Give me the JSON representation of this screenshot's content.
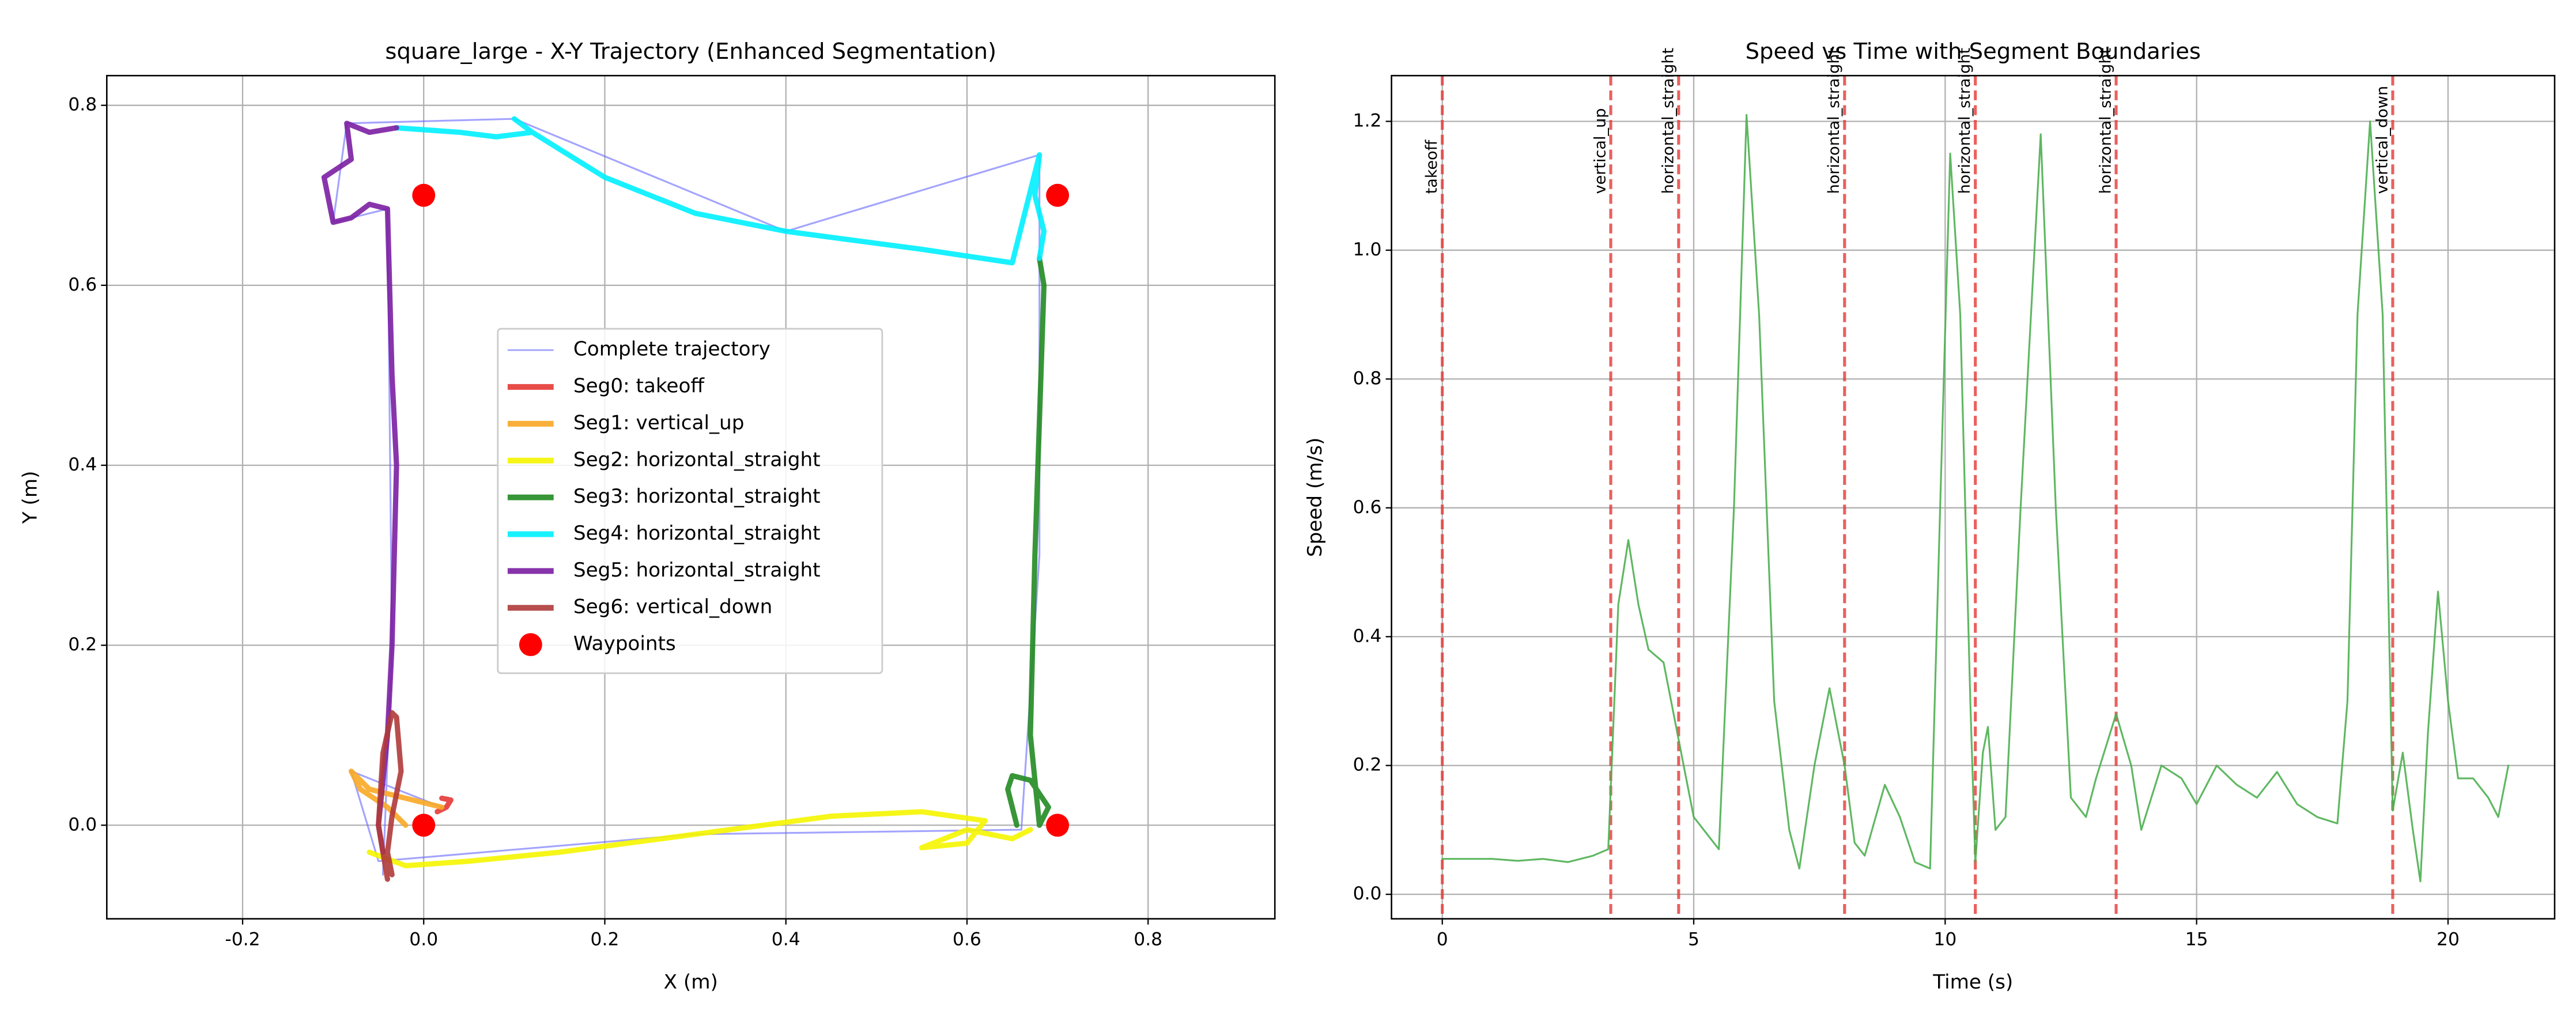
{
  "chart_data": [
    {
      "type": "line",
      "title": "square_large - X-Y Trajectory (Enhanced Segmentation)",
      "xlabel": "X (m)",
      "ylabel": "Y (m)",
      "xlim": [
        -0.35,
        0.94
      ],
      "ylim": [
        -0.104,
        0.833
      ],
      "xticks": [
        -0.2,
        {
          "value": 0,
          "label": "0.0"
        },
        0.2,
        0.4,
        0.6,
        0.8
      ],
      "yticks": [
        {
          "value": 0,
          "label": "0.0"
        },
        0.2,
        0.4,
        0.6,
        0.8
      ],
      "grid": true,
      "legend": "center",
      "series": [
        {
          "name": "Complete trajectory",
          "color": "#6666ff",
          "x": [
            0.02,
            -0.08,
            -0.05,
            0.3,
            0.66,
            0.68,
            0.68,
            0.4,
            0.1,
            -0.085,
            -0.1,
            -0.04,
            -0.035,
            -0.045
          ],
          "y": [
            0.02,
            0.06,
            -0.04,
            -0.01,
            -0.005,
            0.3,
            0.745,
            0.66,
            0.785,
            0.78,
            0.67,
            0.685,
            0.2,
            -0.055
          ]
        },
        {
          "name": "Seg0: takeoff",
          "color": "#e53935",
          "x": [
            0.015,
            0.025,
            0.03,
            0.02
          ],
          "y": [
            0.015,
            0.02,
            0.028,
            0.03
          ]
        },
        {
          "name": "Seg1: vertical_up",
          "color": "#f9a825",
          "x": [
            0.02,
            -0.02,
            -0.06,
            -0.08,
            -0.07,
            -0.04,
            -0.02
          ],
          "y": [
            0.02,
            0.03,
            0.04,
            0.06,
            0.04,
            0.02,
            0.0
          ]
        },
        {
          "name": "Seg2: horizontal_straight",
          "color": "#f5f500",
          "x": [
            -0.06,
            -0.02,
            0.05,
            0.15,
            0.3,
            0.45,
            0.55,
            0.62,
            0.6,
            0.55,
            0.6,
            0.65,
            0.67
          ],
          "y": [
            -0.03,
            -0.045,
            -0.04,
            -0.03,
            -0.01,
            0.01,
            0.015,
            0.005,
            -0.02,
            -0.025,
            -0.005,
            -0.015,
            -0.005
          ]
        },
        {
          "name": "Seg3: horizontal_straight",
          "color": "#228b22",
          "x": [
            0.655,
            0.645,
            0.65,
            0.67,
            0.69,
            0.68,
            0.67,
            0.675,
            0.68,
            0.685,
            0.68
          ],
          "y": [
            0.0,
            0.04,
            0.055,
            0.05,
            0.02,
            0.0,
            0.1,
            0.3,
            0.45,
            0.6,
            0.63
          ]
        },
        {
          "name": "Seg4: horizontal_straight",
          "color": "#00f0ff",
          "x": [
            0.68,
            0.685,
            0.675,
            0.68,
            0.65,
            0.55,
            0.4,
            0.3,
            0.2,
            0.12,
            0.1,
            0.12,
            0.08,
            0.04,
            -0.03
          ],
          "y": [
            0.63,
            0.66,
            0.7,
            0.745,
            0.625,
            0.64,
            0.66,
            0.68,
            0.72,
            0.77,
            0.785,
            0.77,
            0.765,
            0.77,
            0.775
          ]
        },
        {
          "name": "Seg5: horizontal_straight",
          "color": "#7b1fa2",
          "x": [
            -0.03,
            -0.06,
            -0.085,
            -0.08,
            -0.11,
            -0.1,
            -0.08,
            -0.06,
            -0.04,
            -0.035,
            -0.03,
            -0.035,
            -0.04,
            -0.05,
            -0.045
          ],
          "y": [
            0.775,
            0.77,
            0.78,
            0.74,
            0.72,
            0.67,
            0.675,
            0.69,
            0.685,
            0.5,
            0.4,
            0.2,
            0.1,
            0.0,
            -0.03
          ]
        },
        {
          "name": "Seg6: vertical_down",
          "color": "#b03a3a",
          "x": [
            -0.04,
            -0.045,
            -0.05,
            -0.045,
            -0.035,
            -0.03,
            -0.025,
            -0.035,
            -0.04,
            -0.035
          ],
          "y": [
            -0.06,
            -0.03,
            0.0,
            0.08,
            0.125,
            0.12,
            0.06,
            0.01,
            -0.03,
            -0.055
          ]
        }
      ],
      "waypoints": {
        "name": "Waypoints",
        "color": "#ff0000",
        "x": [
          0,
          0.7,
          0.7,
          0
        ],
        "y": [
          0,
          0,
          0.7,
          0.7
        ]
      }
    },
    {
      "type": "line",
      "title": "Speed vs Time with Segment Boundaries",
      "xlabel": "Time (s)",
      "ylabel": "Speed (m/s)",
      "xlim": [
        -1.01,
        22.12
      ],
      "ylim": [
        -0.038,
        1.271
      ],
      "xticks": [
        0,
        5,
        10,
        15,
        20
      ],
      "yticks": [
        {
          "value": 0,
          "label": "0.0"
        },
        0.2,
        0.4,
        0.6,
        0.8,
        {
          "value": 1,
          "label": "1.0"
        },
        1.2
      ],
      "grid": true,
      "series": [
        {
          "color": "#4caf50",
          "x": [
            0,
            0.5,
            1,
            1.5,
            2,
            2.5,
            3,
            3.3,
            3.5,
            3.7,
            3.9,
            4.1,
            4.4,
            4.6,
            4.8,
            5.0,
            5.3,
            5.5,
            5.8,
            6.05,
            6.3,
            6.6,
            6.9,
            7.1,
            7.4,
            7.7,
            8.0,
            8.2,
            8.4,
            8.8,
            9.1,
            9.4,
            9.7,
            9.9,
            10.1,
            10.3,
            10.5,
            10.6,
            10.75,
            10.85,
            11.0,
            11.2,
            11.5,
            11.9,
            12.2,
            12.5,
            12.8,
            13.0,
            13.4,
            13.7,
            13.9,
            14.3,
            14.7,
            15.0,
            15.4,
            15.8,
            16.2,
            16.6,
            17.0,
            17.4,
            17.8,
            18.0,
            18.2,
            18.45,
            18.7,
            18.9,
            19.1,
            19.3,
            19.45,
            19.6,
            19.8,
            20.0,
            20.2,
            20.5,
            20.8,
            21.0,
            21.2
          ],
          "values": [
            0.055,
            0.055,
            0.055,
            0.052,
            0.055,
            0.05,
            0.06,
            0.07,
            0.45,
            0.55,
            0.45,
            0.38,
            0.36,
            0.28,
            0.2,
            0.12,
            0.09,
            0.07,
            0.6,
            1.21,
            0.9,
            0.3,
            0.1,
            0.04,
            0.2,
            0.32,
            0.2,
            0.08,
            0.06,
            0.17,
            0.12,
            0.05,
            0.04,
            0.6,
            1.15,
            0.9,
            0.3,
            0.05,
            0.22,
            0.26,
            0.1,
            0.12,
            0.6,
            1.18,
            0.6,
            0.15,
            0.12,
            0.18,
            0.28,
            0.2,
            0.1,
            0.2,
            0.18,
            0.14,
            0.2,
            0.17,
            0.15,
            0.19,
            0.14,
            0.12,
            0.11,
            0.3,
            0.9,
            1.2,
            0.9,
            0.13,
            0.22,
            0.1,
            0.02,
            0.25,
            0.47,
            0.3,
            0.18,
            0.18,
            0.15,
            0.12,
            0.2
          ]
        }
      ],
      "boundary_color": "#e53935",
      "boundaries": [
        {
          "x": 0,
          "label": "takeoff"
        },
        {
          "x": 3.35,
          "label": "vertical_up"
        },
        {
          "x": 4.7,
          "label": "horizontal_straight"
        },
        {
          "x": 8.0,
          "label": "horizontal_straight"
        },
        {
          "x": 10.6,
          "label": "horizontal_straight"
        },
        {
          "x": 13.4,
          "label": "horizontal_straight"
        },
        {
          "x": 18.9,
          "label": "vertical_down"
        }
      ]
    }
  ]
}
